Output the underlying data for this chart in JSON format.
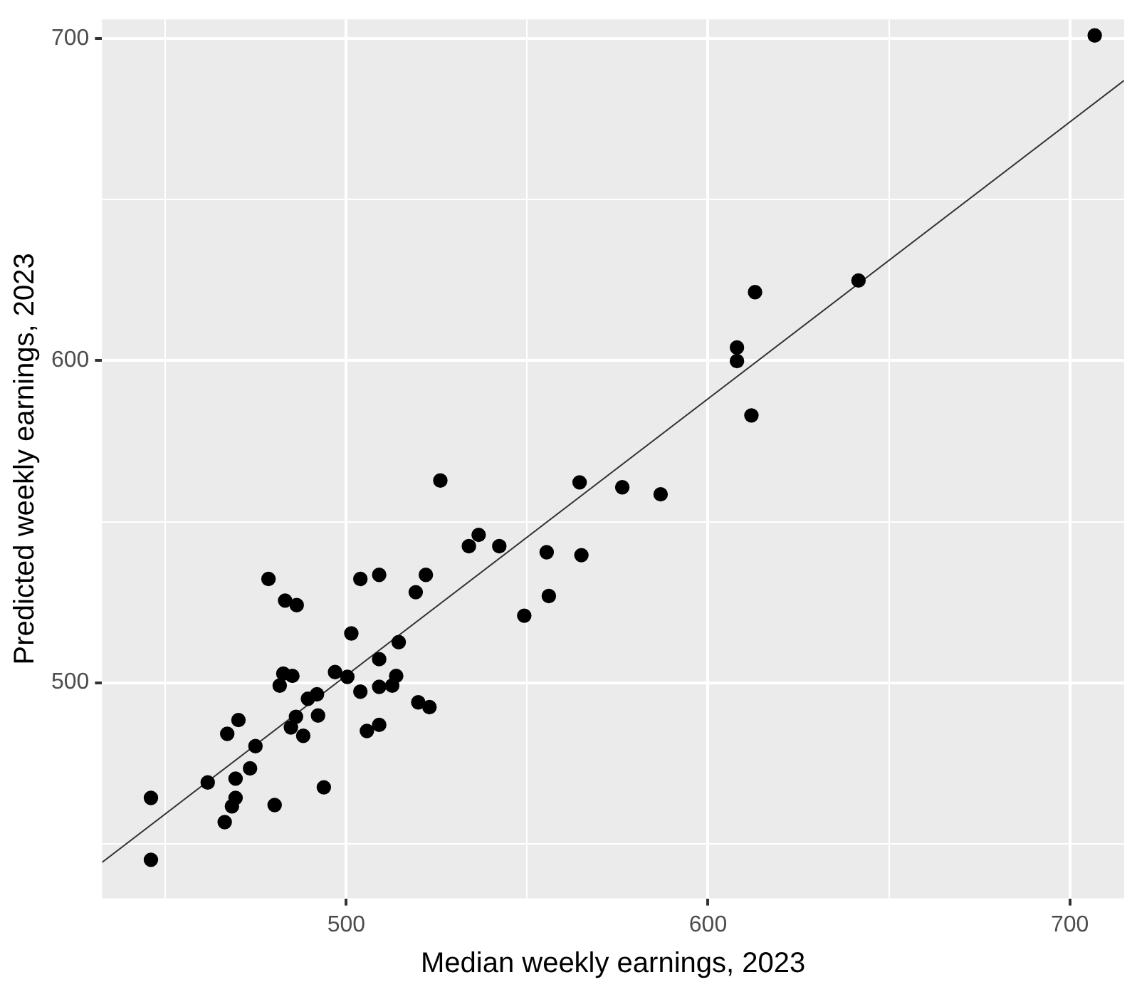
{
  "chart_data": {
    "type": "scatter",
    "xlabel": "Median weekly earnings, 2023",
    "ylabel": "Predicted weekly earnings, 2023",
    "xlim": [
      432.5,
      715
    ],
    "ylim": [
      433,
      706
    ],
    "xticks": [
      {
        "value": 450,
        "label": null
      },
      500,
      {
        "value": 550,
        "label": null
      },
      600,
      {
        "value": 650,
        "label": null
      },
      700
    ],
    "yticks": [
      {
        "value": 450,
        "label": null
      },
      500,
      {
        "value": 550,
        "label": null
      },
      600,
      {
        "value": 650,
        "label": null
      },
      700
    ],
    "grid": true,
    "legend": false,
    "series": [
      {
        "color": "#000000",
        "marker": "circle",
        "x": [
          706.9,
          613,
          608,
          608,
          612,
          641.6,
          526,
          564.5,
          576.3,
          586.9,
          536.6,
          533.9,
          542.3,
          555.4,
          565,
          556,
          549.2,
          478.5,
          503.9,
          509.1,
          522,
          519.2,
          483.1,
          486.3,
          501.4,
          514.5,
          509.1,
          482.6,
          485.1,
          481.6,
          496.9,
          500.3,
          513.8,
          512.7,
          509.1,
          503.9,
          491.9,
          489.4,
          519.9,
          523,
          486.1,
          492.2,
          484.7,
          488.1,
          470.2,
          467.1,
          505.7,
          509.1,
          474.9,
          473.4,
          461.7,
          469.4,
          469.4,
          468.4,
          466.4,
          480.2,
          493.8,
          446,
          446
        ],
        "values": [
          701,
          621.3,
          604.1,
          599.9,
          583,
          624.9,
          562.8,
          562.2,
          560.7,
          558.5,
          545.9,
          542.4,
          542.4,
          540.5,
          539.6,
          526.9,
          520.8,
          532.2,
          532.2,
          533.5,
          533.5,
          528.1,
          525.5,
          524.1,
          515.3,
          512.6,
          507.3,
          502.8,
          502.1,
          499.1,
          503.3,
          501.8,
          502.1,
          499.1,
          498.7,
          497.2,
          496.4,
          495,
          493.9,
          492.4,
          489.4,
          489.8,
          486.1,
          483.5,
          488.4,
          484.1,
          485,
          486.9,
          480.3,
          473.4,
          469,
          470.2,
          464.2,
          461.6,
          456.7,
          462,
          467.5,
          464.2,
          445
        ]
      },
      {
        "type": "line",
        "marker": "none",
        "color": "#333333",
        "x": [
          432.5,
          715
        ],
        "values": [
          444.2,
          687
        ]
      }
    ]
  }
}
